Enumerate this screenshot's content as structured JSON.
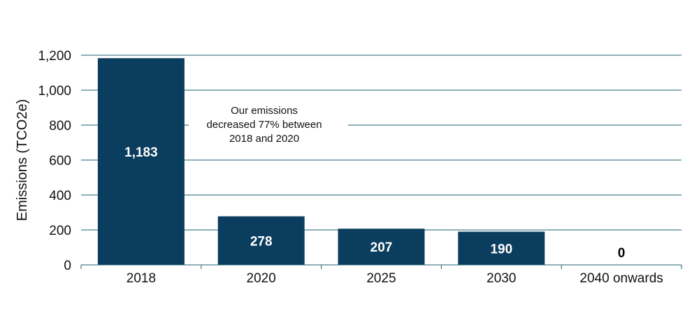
{
  "chart_data": {
    "type": "bar",
    "categories": [
      "2018",
      "2020",
      "2025",
      "2030",
      "2040 onwards"
    ],
    "values": [
      1183,
      278,
      207,
      190,
      0
    ],
    "value_labels": [
      "1,183",
      "278",
      "207",
      "190",
      "0"
    ],
    "ylabel": "Emissions (TCO2e)",
    "ylim": [
      0,
      1200
    ],
    "yticks": [
      0,
      200,
      400,
      600,
      800,
      1000,
      1200
    ],
    "ytick_labels": [
      "0",
      "200",
      "400",
      "600",
      "800",
      "1,000",
      "1,200"
    ],
    "grid": true,
    "annotation": {
      "lines": [
        "Our emissions",
        "decreased 77% between",
        "2018 and 2020"
      ]
    },
    "colors": {
      "bar": "#0b3d5e",
      "grid": "#1f5f73",
      "bar_label": "#ffffff",
      "zero_label": "#000000"
    }
  }
}
